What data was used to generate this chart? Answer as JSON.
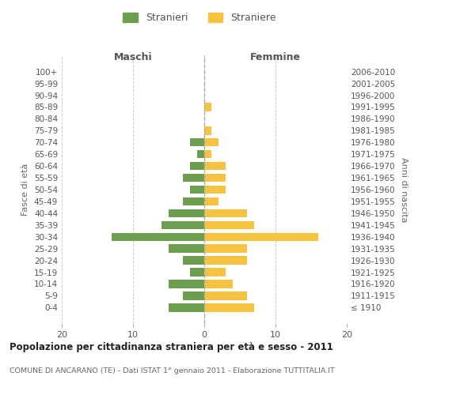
{
  "age_groups": [
    "100+",
    "95-99",
    "90-94",
    "85-89",
    "80-84",
    "75-79",
    "70-74",
    "65-69",
    "60-64",
    "55-59",
    "50-54",
    "45-49",
    "40-44",
    "35-39",
    "30-34",
    "25-29",
    "20-24",
    "15-19",
    "10-14",
    "5-9",
    "0-4"
  ],
  "birth_years": [
    "≤ 1910",
    "1911-1915",
    "1916-1920",
    "1921-1925",
    "1926-1930",
    "1931-1935",
    "1936-1940",
    "1941-1945",
    "1946-1950",
    "1951-1955",
    "1956-1960",
    "1961-1965",
    "1966-1970",
    "1971-1975",
    "1976-1980",
    "1981-1985",
    "1986-1990",
    "1991-1995",
    "1996-2000",
    "2001-2005",
    "2006-2010"
  ],
  "maschi": [
    0,
    0,
    0,
    0,
    0,
    0,
    2,
    1,
    2,
    3,
    2,
    3,
    5,
    6,
    13,
    5,
    3,
    2,
    5,
    3,
    5
  ],
  "femmine": [
    0,
    0,
    0,
    1,
    0,
    1,
    2,
    1,
    3,
    3,
    3,
    2,
    6,
    7,
    16,
    6,
    6,
    3,
    4,
    6,
    7
  ],
  "male_color": "#6d9e50",
  "female_color": "#f5c242",
  "background_color": "#ffffff",
  "grid_color": "#cccccc",
  "title": "Popolazione per cittadinanza straniera per età e sesso - 2011",
  "subtitle": "COMUNE DI ANCARANO (TE) - Dati ISTAT 1° gennaio 2011 - Elaborazione TUTTITALIA.IT",
  "ylabel_left": "Fasce di età",
  "ylabel_right": "Anni di nascita",
  "xlabel_maschi": "Maschi",
  "xlabel_femmine": "Femmine",
  "legend_male": "Stranieri",
  "legend_female": "Straniere",
  "xlim": 20
}
